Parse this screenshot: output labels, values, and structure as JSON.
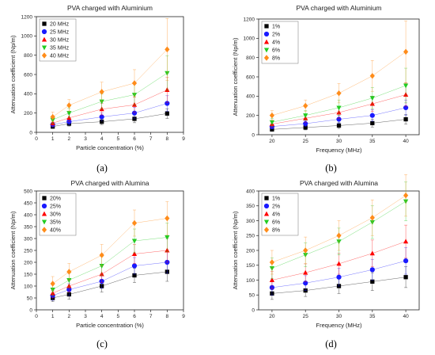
{
  "chart_data": [
    {
      "panel": "(a)",
      "type": "scatter",
      "title": "PVA charged with Aluminium",
      "xlabel": "Particle concentration (%)",
      "ylabel": "Attenuation coefficient (Np/m)",
      "xlim": [
        0,
        9
      ],
      "ylim": [
        0,
        1200
      ],
      "xticks": [
        0,
        1,
        2,
        3,
        4,
        5,
        6,
        7,
        8,
        9
      ],
      "yticks": [
        0,
        200,
        400,
        600,
        800,
        1000,
        1200
      ],
      "legend_position": "top-left",
      "x": [
        1,
        2,
        4,
        6,
        8
      ],
      "series": [
        {
          "name": "20 MHz",
          "color": "#000000",
          "marker": "square",
          "values": [
            60,
            90,
            110,
            140,
            195
          ],
          "errors": [
            20,
            25,
            30,
            40,
            50
          ]
        },
        {
          "name": "25 MHz",
          "color": "#1a1aff",
          "marker": "circle",
          "values": [
            80,
            110,
            160,
            200,
            300
          ],
          "errors": [
            25,
            30,
            40,
            60,
            80
          ]
        },
        {
          "name": "30 MHz",
          "color": "#ff0000",
          "marker": "triangle-up",
          "values": [
            95,
            150,
            240,
            285,
            440
          ],
          "errors": [
            30,
            40,
            60,
            80,
            130
          ]
        },
        {
          "name": "35 MHz",
          "color": "#22cc22",
          "marker": "triangle-down",
          "values": [
            130,
            200,
            320,
            390,
            615
          ],
          "errors": [
            40,
            50,
            80,
            110,
            180
          ]
        },
        {
          "name": "40 MHz",
          "color": "#ff8c1a",
          "marker": "diamond",
          "values": [
            160,
            280,
            420,
            510,
            860
          ],
          "errors": [
            50,
            60,
            100,
            140,
            320
          ]
        }
      ]
    },
    {
      "panel": "(b)",
      "type": "scatter",
      "title": "PVA charged with Aluminium",
      "xlabel": "Frequency (MHz)",
      "ylabel": "Attenuation coefficient (Np/m)",
      "xlim": [
        18,
        42
      ],
      "ylim": [
        0,
        1200
      ],
      "xticks": [
        20,
        25,
        30,
        35,
        40
      ],
      "yticks": [
        0,
        200,
        400,
        600,
        800,
        1000,
        1200
      ],
      "legend_position": "top-left",
      "x": [
        20,
        25,
        30,
        35,
        40
      ],
      "series": [
        {
          "name": "1%",
          "color": "#000000",
          "marker": "square",
          "values": [
            55,
            75,
            95,
            120,
            160
          ],
          "errors": [
            20,
            25,
            30,
            40,
            50
          ]
        },
        {
          "name": "2%",
          "color": "#1a1aff",
          "marker": "circle",
          "values": [
            85,
            115,
            160,
            200,
            280
          ],
          "errors": [
            25,
            30,
            40,
            60,
            80
          ]
        },
        {
          "name": "4%",
          "color": "#ff0000",
          "marker": "triangle-up",
          "values": [
            110,
            170,
            230,
            320,
            415
          ],
          "errors": [
            30,
            40,
            60,
            80,
            120
          ]
        },
        {
          "name": "6%",
          "color": "#22cc22",
          "marker": "triangle-down",
          "values": [
            130,
            200,
            280,
            380,
            510
          ],
          "errors": [
            40,
            50,
            80,
            110,
            180
          ]
        },
        {
          "name": "8%",
          "color": "#ff8c1a",
          "marker": "diamond",
          "values": [
            200,
            300,
            430,
            610,
            860
          ],
          "errors": [
            50,
            60,
            100,
            160,
            320
          ]
        }
      ]
    },
    {
      "panel": "(c)",
      "type": "scatter",
      "title": "PVA charged with Alumina",
      "xlabel": "Particle concentration (%)",
      "ylabel": "Attenuation coefficient (Np/m)",
      "xlim": [
        0,
        9
      ],
      "ylim": [
        0,
        500
      ],
      "xticks": [
        0,
        1,
        2,
        3,
        4,
        5,
        6,
        7,
        8,
        9
      ],
      "yticks": [
        0,
        50,
        100,
        150,
        200,
        250,
        300,
        350,
        400,
        450,
        500
      ],
      "legend_position": "top-left",
      "x": [
        1,
        2,
        4,
        6,
        8
      ],
      "series": [
        {
          "name": "20%",
          "color": "#000000",
          "marker": "square",
          "values": [
            50,
            65,
            100,
            145,
            160
          ],
          "errors": [
            15,
            20,
            25,
            30,
            40
          ]
        },
        {
          "name": "25%",
          "color": "#1a1aff",
          "marker": "circle",
          "values": [
            60,
            85,
            120,
            185,
            200
          ],
          "errors": [
            20,
            25,
            30,
            35,
            45
          ]
        },
        {
          "name": "30%",
          "color": "#ff0000",
          "marker": "triangle-up",
          "values": [
            70,
            100,
            150,
            235,
            250
          ],
          "errors": [
            20,
            25,
            35,
            40,
            50
          ]
        },
        {
          "name": "35%",
          "color": "#22cc22",
          "marker": "triangle-down",
          "values": [
            85,
            125,
            185,
            290,
            305
          ],
          "errors": [
            25,
            30,
            40,
            50,
            60
          ]
        },
        {
          "name": "40%",
          "color": "#ff8c1a",
          "marker": "diamond",
          "values": [
            110,
            160,
            230,
            365,
            385
          ],
          "errors": [
            30,
            35,
            45,
            55,
            70
          ]
        }
      ]
    },
    {
      "panel": "(d)",
      "type": "scatter",
      "title": "PVA charged with Alumina",
      "xlabel": "Frequency (MHz)",
      "ylabel": "Attenuation coefficient (Np/m)",
      "xlim": [
        18,
        42
      ],
      "ylim": [
        0,
        400
      ],
      "xticks": [
        20,
        25,
        30,
        35,
        40
      ],
      "yticks": [
        0,
        50,
        100,
        150,
        200,
        250,
        300,
        350,
        400
      ],
      "legend_position": "top-left",
      "x": [
        20,
        25,
        30,
        35,
        40
      ],
      "series": [
        {
          "name": "1%",
          "color": "#000000",
          "marker": "square",
          "values": [
            55,
            65,
            80,
            95,
            110
          ],
          "errors": [
            20,
            20,
            25,
            30,
            35
          ]
        },
        {
          "name": "2%",
          "color": "#1a1aff",
          "marker": "circle",
          "values": [
            75,
            90,
            110,
            135,
            165
          ],
          "errors": [
            25,
            25,
            30,
            35,
            45
          ]
        },
        {
          "name": "4%",
          "color": "#ff0000",
          "marker": "triangle-up",
          "values": [
            100,
            125,
            155,
            190,
            230
          ],
          "errors": [
            30,
            30,
            35,
            45,
            55
          ]
        },
        {
          "name": "6%",
          "color": "#22cc22",
          "marker": "triangle-down",
          "values": [
            140,
            185,
            230,
            295,
            365
          ],
          "errors": [
            35,
            40,
            45,
            55,
            65
          ]
        },
        {
          "name": "8%",
          "color": "#ff8c1a",
          "marker": "diamond",
          "values": [
            160,
            200,
            250,
            310,
            385
          ],
          "errors": [
            40,
            45,
            50,
            60,
            70
          ]
        }
      ]
    }
  ]
}
